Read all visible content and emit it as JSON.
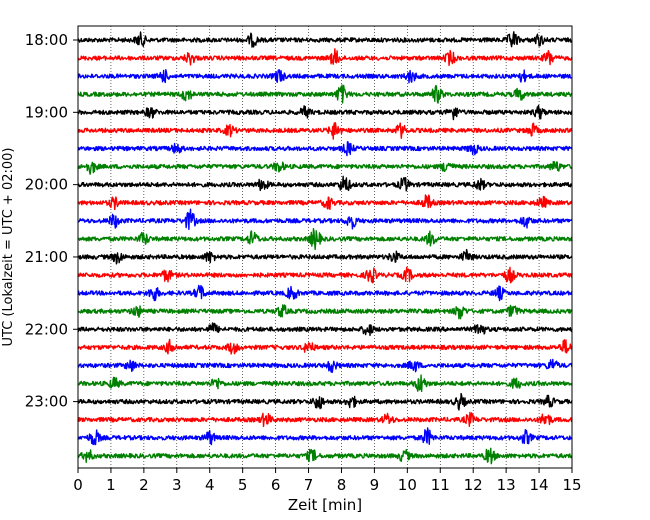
{
  "chart_data": {
    "type": "line",
    "title": "",
    "xlabel": "Zeit  [min]",
    "ylabel": "UTC (Lokalzeit = UTC + 02:00)",
    "xlim": [
      0,
      15
    ],
    "x_ticks": [
      "0",
      "1",
      "2",
      "3",
      "4",
      "5",
      "6",
      "7",
      "8",
      "9",
      "10",
      "11",
      "12",
      "13",
      "14",
      "15"
    ],
    "y_ticks": [
      "18:00",
      "19:00",
      "20:00",
      "21:00",
      "22:00",
      "23:00"
    ],
    "grid": "vertical dotted at each minute",
    "trace_interval_minutes": 15,
    "trace_start": "18:00",
    "trace_colors": [
      "#000000",
      "#ff0000",
      "#0000ff",
      "#008000"
    ],
    "series": [
      {
        "start": "18:00",
        "color": "#000000",
        "amplitude": 0.35,
        "events": [
          {
            "t": 1.9,
            "a": 1.0
          },
          {
            "t": 5.3,
            "a": 0.9
          },
          {
            "t": 13.2,
            "a": 1.3
          },
          {
            "t": 14.0,
            "a": 0.8
          }
        ]
      },
      {
        "start": "18:15",
        "color": "#ff0000",
        "amplitude": 0.35,
        "events": [
          {
            "t": 3.4,
            "a": 0.9
          },
          {
            "t": 7.8,
            "a": 1.2
          },
          {
            "t": 11.3,
            "a": 1.0
          },
          {
            "t": 14.3,
            "a": 1.1
          }
        ]
      },
      {
        "start": "18:30",
        "color": "#0000ff",
        "amplitude": 0.35,
        "events": [
          {
            "t": 2.6,
            "a": 0.9
          },
          {
            "t": 6.1,
            "a": 1.0
          },
          {
            "t": 10.1,
            "a": 0.9
          },
          {
            "t": 13.5,
            "a": 0.8
          }
        ]
      },
      {
        "start": "18:45",
        "color": "#008000",
        "amplitude": 0.35,
        "events": [
          {
            "t": 3.3,
            "a": 1.0
          },
          {
            "t": 8.0,
            "a": 1.4
          },
          {
            "t": 10.9,
            "a": 1.3
          },
          {
            "t": 13.4,
            "a": 0.9
          }
        ]
      },
      {
        "start": "19:00",
        "color": "#000000",
        "amplitude": 0.35,
        "events": [
          {
            "t": 2.2,
            "a": 0.8
          },
          {
            "t": 6.9,
            "a": 0.8
          },
          {
            "t": 11.4,
            "a": 1.0
          },
          {
            "t": 14.0,
            "a": 0.9
          }
        ]
      },
      {
        "start": "19:15",
        "color": "#ff0000",
        "amplitude": 0.35,
        "events": [
          {
            "t": 4.6,
            "a": 0.8
          },
          {
            "t": 7.8,
            "a": 1.3
          },
          {
            "t": 9.8,
            "a": 1.0
          },
          {
            "t": 13.8,
            "a": 0.9
          }
        ]
      },
      {
        "start": "19:30",
        "color": "#0000ff",
        "amplitude": 0.35,
        "events": [
          {
            "t": 3.0,
            "a": 0.7
          },
          {
            "t": 8.2,
            "a": 0.9
          },
          {
            "t": 12.0,
            "a": 0.8
          }
        ]
      },
      {
        "start": "19:45",
        "color": "#008000",
        "amplitude": 0.35,
        "events": [
          {
            "t": 0.4,
            "a": 1.0
          },
          {
            "t": 6.1,
            "a": 0.8
          },
          {
            "t": 11.2,
            "a": 0.9
          },
          {
            "t": 14.5,
            "a": 0.8
          }
        ]
      },
      {
        "start": "20:00",
        "color": "#000000",
        "amplitude": 0.35,
        "events": [
          {
            "t": 5.6,
            "a": 0.9
          },
          {
            "t": 8.1,
            "a": 1.4
          },
          {
            "t": 9.9,
            "a": 1.0
          },
          {
            "t": 12.2,
            "a": 0.8
          }
        ]
      },
      {
        "start": "20:15",
        "color": "#ff0000",
        "amplitude": 0.35,
        "events": [
          {
            "t": 1.1,
            "a": 0.8
          },
          {
            "t": 7.6,
            "a": 0.9
          },
          {
            "t": 10.6,
            "a": 1.1
          },
          {
            "t": 14.1,
            "a": 0.8
          }
        ]
      },
      {
        "start": "20:30",
        "color": "#0000ff",
        "amplitude": 0.35,
        "events": [
          {
            "t": 1.1,
            "a": 1.0
          },
          {
            "t": 3.4,
            "a": 1.6
          },
          {
            "t": 8.3,
            "a": 1.1
          },
          {
            "t": 13.6,
            "a": 0.9
          }
        ]
      },
      {
        "start": "20:45",
        "color": "#008000",
        "amplitude": 0.35,
        "events": [
          {
            "t": 2.0,
            "a": 0.9
          },
          {
            "t": 5.3,
            "a": 1.1
          },
          {
            "t": 7.2,
            "a": 1.6
          },
          {
            "t": 10.7,
            "a": 1.0
          }
        ]
      },
      {
        "start": "21:00",
        "color": "#000000",
        "amplitude": 0.35,
        "events": [
          {
            "t": 1.2,
            "a": 0.9
          },
          {
            "t": 4.0,
            "a": 0.8
          },
          {
            "t": 9.6,
            "a": 0.8
          },
          {
            "t": 11.8,
            "a": 0.9
          }
        ]
      },
      {
        "start": "21:15",
        "color": "#ff0000",
        "amplitude": 0.35,
        "events": [
          {
            "t": 2.7,
            "a": 0.9
          },
          {
            "t": 8.9,
            "a": 1.2
          },
          {
            "t": 10.0,
            "a": 1.0
          },
          {
            "t": 13.1,
            "a": 1.1
          }
        ]
      },
      {
        "start": "21:30",
        "color": "#0000ff",
        "amplitude": 0.35,
        "events": [
          {
            "t": 2.3,
            "a": 1.1
          },
          {
            "t": 3.7,
            "a": 1.1
          },
          {
            "t": 6.5,
            "a": 1.0
          },
          {
            "t": 12.8,
            "a": 0.9
          }
        ]
      },
      {
        "start": "21:45",
        "color": "#008000",
        "amplitude": 0.35,
        "events": [
          {
            "t": 1.8,
            "a": 0.8
          },
          {
            "t": 6.2,
            "a": 0.9
          },
          {
            "t": 11.6,
            "a": 1.1
          },
          {
            "t": 13.2,
            "a": 0.9
          }
        ]
      },
      {
        "start": "22:00",
        "color": "#000000",
        "amplitude": 0.35,
        "events": [
          {
            "t": 4.1,
            "a": 0.8
          },
          {
            "t": 8.8,
            "a": 0.9
          },
          {
            "t": 12.2,
            "a": 1.1
          }
        ]
      },
      {
        "start": "22:15",
        "color": "#ff0000",
        "amplitude": 0.35,
        "events": [
          {
            "t": 2.8,
            "a": 1.0
          },
          {
            "t": 4.7,
            "a": 0.9
          },
          {
            "t": 7.0,
            "a": 0.9
          },
          {
            "t": 14.8,
            "a": 1.0
          }
        ]
      },
      {
        "start": "22:30",
        "color": "#0000ff",
        "amplitude": 0.35,
        "events": [
          {
            "t": 1.6,
            "a": 0.8
          },
          {
            "t": 7.7,
            "a": 0.9
          },
          {
            "t": 10.2,
            "a": 0.9
          },
          {
            "t": 14.4,
            "a": 0.9
          }
        ]
      },
      {
        "start": "22:45",
        "color": "#008000",
        "amplitude": 0.35,
        "events": [
          {
            "t": 1.1,
            "a": 0.8
          },
          {
            "t": 4.2,
            "a": 0.8
          },
          {
            "t": 10.4,
            "a": 1.4
          },
          {
            "t": 13.3,
            "a": 0.8
          }
        ]
      },
      {
        "start": "23:00",
        "color": "#000000",
        "amplitude": 0.35,
        "events": [
          {
            "t": 7.3,
            "a": 1.1
          },
          {
            "t": 8.3,
            "a": 0.9
          },
          {
            "t": 11.6,
            "a": 1.1
          },
          {
            "t": 14.3,
            "a": 0.8
          }
        ]
      },
      {
        "start": "23:15",
        "color": "#ff0000",
        "amplitude": 0.35,
        "events": [
          {
            "t": 5.7,
            "a": 1.0
          },
          {
            "t": 9.4,
            "a": 0.8
          },
          {
            "t": 11.9,
            "a": 0.9
          },
          {
            "t": 14.2,
            "a": 1.1
          }
        ]
      },
      {
        "start": "23:30",
        "color": "#0000ff",
        "amplitude": 0.35,
        "events": [
          {
            "t": 0.5,
            "a": 1.2
          },
          {
            "t": 4.0,
            "a": 1.0
          },
          {
            "t": 10.6,
            "a": 1.3
          },
          {
            "t": 13.6,
            "a": 1.0
          }
        ]
      },
      {
        "start": "23:45",
        "color": "#008000",
        "amplitude": 0.35,
        "events": [
          {
            "t": 0.3,
            "a": 0.9
          },
          {
            "t": 7.1,
            "a": 0.9
          },
          {
            "t": 9.9,
            "a": 0.9
          },
          {
            "t": 12.5,
            "a": 1.2
          }
        ]
      }
    ]
  }
}
